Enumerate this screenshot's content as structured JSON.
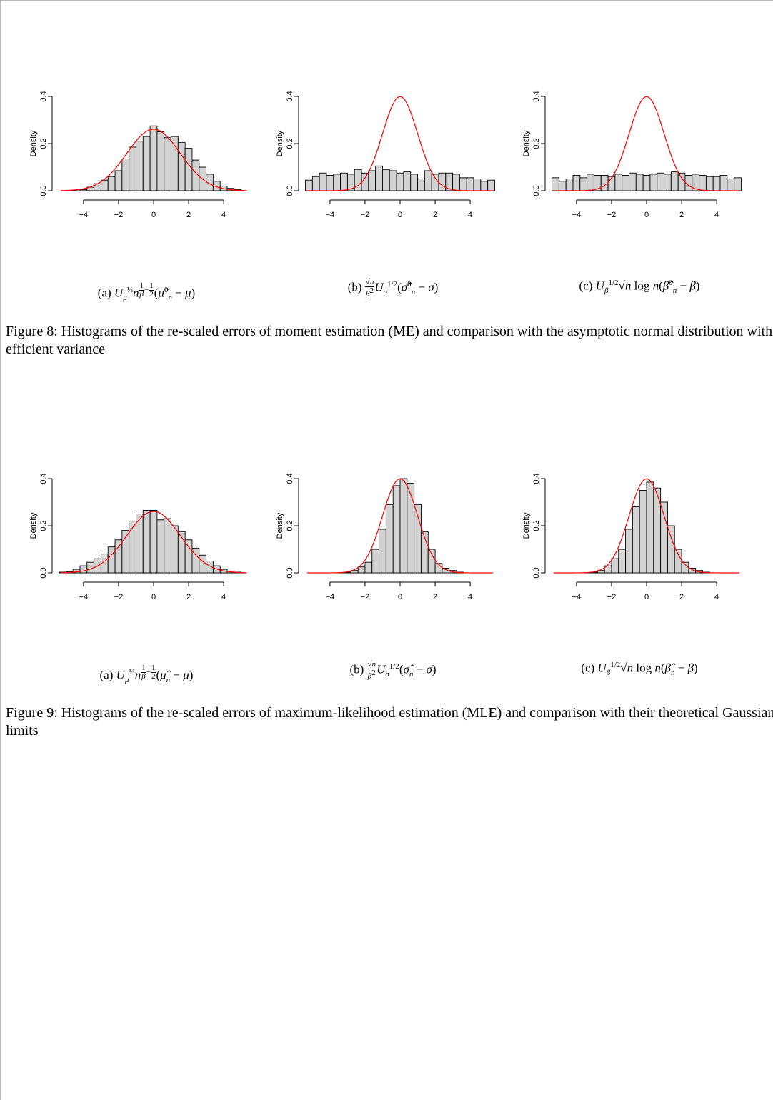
{
  "figure8": {
    "caption": "Figure 8: Histograms of the re-scaled errors of moment estimation (ME) and comparison with the asymptotic normal distribution with efficient variance",
    "subcaptions": [
      "(a)",
      "(b)",
      "(c)"
    ]
  },
  "figure9": {
    "caption": "Figure 9: Histograms of the re-scaled errors of maximum-likelihood estimation (MLE) and comparison with their theoretical Gaussian limits",
    "subcaptions": [
      "(a)",
      "(b)",
      "(c)"
    ]
  },
  "chart_data": [
    {
      "id": "fig8a",
      "type": "bar",
      "ylabel": "Density",
      "xticks": [
        -4,
        -2,
        0,
        2,
        4
      ],
      "yticks": [
        "0.0",
        "0.2",
        "0.4"
      ],
      "xlim": [
        -5.3,
        5.3
      ],
      "ylim": [
        0,
        0.4
      ],
      "bin_start": -5.0,
      "bin_width": 0.4,
      "values": [
        0.0,
        0.0,
        0.005,
        0.015,
        0.03,
        0.045,
        0.06,
        0.085,
        0.135,
        0.185,
        0.21,
        0.23,
        0.275,
        0.25,
        0.225,
        0.23,
        0.205,
        0.18,
        0.13,
        0.1,
        0.07,
        0.04,
        0.02,
        0.01,
        0.005,
        0.0
      ],
      "curve": {
        "color": "#ff0000",
        "mean": 0,
        "sd": 1.53
      }
    },
    {
      "id": "fig8b",
      "type": "bar",
      "ylabel": "Density",
      "xticks": [
        -4,
        -2,
        0,
        2,
        4
      ],
      "yticks": [
        "0.0",
        "0.2",
        "0.4"
      ],
      "xlim": [
        -5.3,
        5.3
      ],
      "ylim": [
        0,
        0.4
      ],
      "bin_start": -5.4,
      "bin_width": 0.4,
      "values": [
        0.045,
        0.06,
        0.075,
        0.065,
        0.07,
        0.075,
        0.07,
        0.09,
        0.075,
        0.085,
        0.105,
        0.09,
        0.085,
        0.075,
        0.08,
        0.07,
        0.05,
        0.085,
        0.07,
        0.075,
        0.075,
        0.07,
        0.055,
        0.055,
        0.05,
        0.04,
        0.045
      ],
      "curve": {
        "color": "#ff0000",
        "mean": 0,
        "sd": 1.0
      }
    },
    {
      "id": "fig8c",
      "type": "bar",
      "ylabel": "Density",
      "xticks": [
        -4,
        -2,
        0,
        2,
        4
      ],
      "yticks": [
        "0.0",
        "0.2",
        "0.4"
      ],
      "xlim": [
        -5.3,
        5.3
      ],
      "ylim": [
        0,
        0.4
      ],
      "bin_start": -5.4,
      "bin_width": 0.4,
      "values": [
        0.055,
        0.04,
        0.05,
        0.065,
        0.055,
        0.07,
        0.065,
        0.065,
        0.06,
        0.07,
        0.065,
        0.075,
        0.07,
        0.065,
        0.07,
        0.075,
        0.07,
        0.08,
        0.075,
        0.065,
        0.07,
        0.065,
        0.06,
        0.06,
        0.065,
        0.05,
        0.055
      ],
      "curve": {
        "color": "#ff0000",
        "mean": 0,
        "sd": 1.0
      }
    },
    {
      "id": "fig9a",
      "type": "bar",
      "ylabel": "Density",
      "xticks": [
        -4,
        -2,
        0,
        2,
        4
      ],
      "yticks": [
        "0.0",
        "0.2",
        "0.4"
      ],
      "xlim": [
        -5.3,
        5.3
      ],
      "ylim": [
        0,
        0.4
      ],
      "bin_start": -5.4,
      "bin_width": 0.4,
      "values": [
        0.003,
        0.005,
        0.015,
        0.03,
        0.045,
        0.06,
        0.08,
        0.11,
        0.14,
        0.18,
        0.22,
        0.25,
        0.265,
        0.265,
        0.225,
        0.23,
        0.2,
        0.175,
        0.14,
        0.105,
        0.075,
        0.05,
        0.03,
        0.015,
        0.008,
        0.003,
        0.0
      ],
      "curve": {
        "color": "#ff0000",
        "mean": 0,
        "sd": 1.53
      }
    },
    {
      "id": "fig9b",
      "type": "bar",
      "ylabel": "Density",
      "xticks": [
        -4,
        -2,
        0,
        2,
        4
      ],
      "yticks": [
        "0.0",
        "0.2",
        "0.4"
      ],
      "xlim": [
        -5.3,
        5.3
      ],
      "ylim": [
        0,
        0.4
      ],
      "bin_start": -4.0,
      "bin_width": 0.4,
      "values": [
        0.0,
        0.0,
        0.003,
        0.01,
        0.025,
        0.045,
        0.1,
        0.185,
        0.29,
        0.37,
        0.4,
        0.38,
        0.29,
        0.175,
        0.1,
        0.04,
        0.02,
        0.01,
        0.003,
        0.0
      ],
      "curve": {
        "color": "#ff0000",
        "mean": 0,
        "sd": 1.0
      }
    },
    {
      "id": "fig9c",
      "type": "bar",
      "ylabel": "Density",
      "xticks": [
        -4,
        -2,
        0,
        2,
        4
      ],
      "yticks": [
        "0.0",
        "0.2",
        "0.4"
      ],
      "xlim": [
        -5.3,
        5.3
      ],
      "ylim": [
        0,
        0.4
      ],
      "bin_start": -4.0,
      "bin_width": 0.4,
      "values": [
        0.0,
        0.0,
        0.003,
        0.01,
        0.03,
        0.06,
        0.1,
        0.185,
        0.28,
        0.35,
        0.385,
        0.36,
        0.3,
        0.2,
        0.1,
        0.045,
        0.02,
        0.01,
        0.003,
        0.0
      ],
      "curve": {
        "color": "#ff0000",
        "mean": 0,
        "sd": 1.0
      }
    }
  ]
}
